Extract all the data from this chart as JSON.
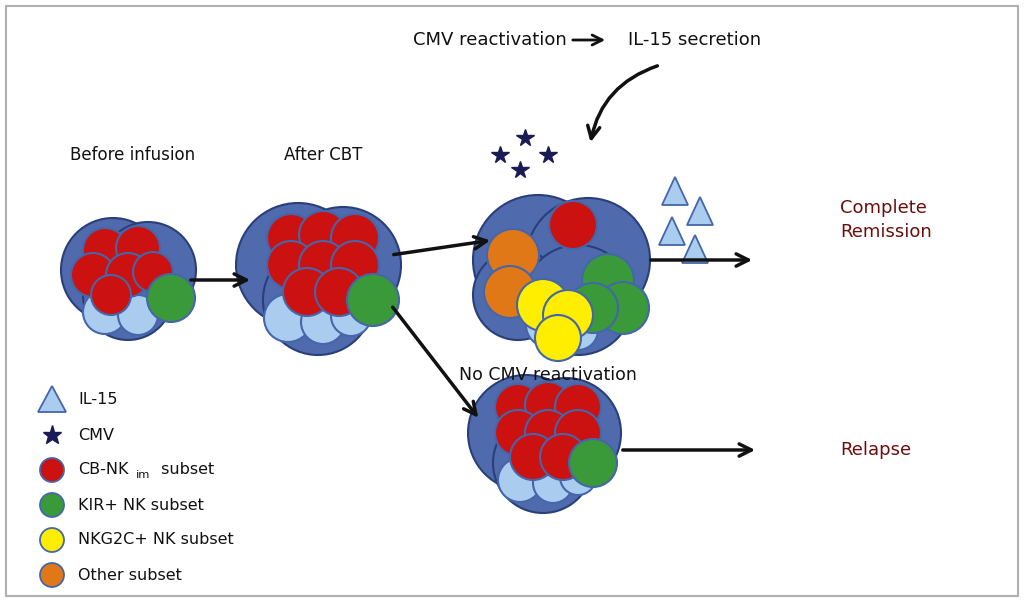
{
  "bg_color": "#ffffff",
  "border_color": "#b0b0b0",
  "red_color": "#cc1111",
  "green_color": "#3a9a3a",
  "yellow_color": "#ffee00",
  "orange_color": "#e07818",
  "blue_blob_color": "#4f6aad",
  "blue_blob_edge": "#2a3f7a",
  "light_blue_color": "#aaccee",
  "light_blue_edge": "#4466aa",
  "cmv_color": "#1a1a55",
  "arrow_color": "#111111",
  "complete_remission_color": "#6b0d0d",
  "relapse_color": "#6b0d0d",
  "label_color": "#111111",
  "before_infusion_label": "Before infusion",
  "after_cbt_label": "After CBT",
  "cmv_reactivation_label": "CMV reactivation",
  "il15_secretion_label": "IL-15 secretion",
  "no_cmv_label": "No CMV reactivation",
  "complete_remission_label": "Complete\nRemission",
  "relapse_label": "Relapse",
  "legend_il15": "IL-15",
  "legend_cmv": "CMV",
  "legend_kir": "KIR+ NK subset",
  "legend_nkg2c": "NKG2C+ NK subset",
  "legend_other": "Other subset"
}
